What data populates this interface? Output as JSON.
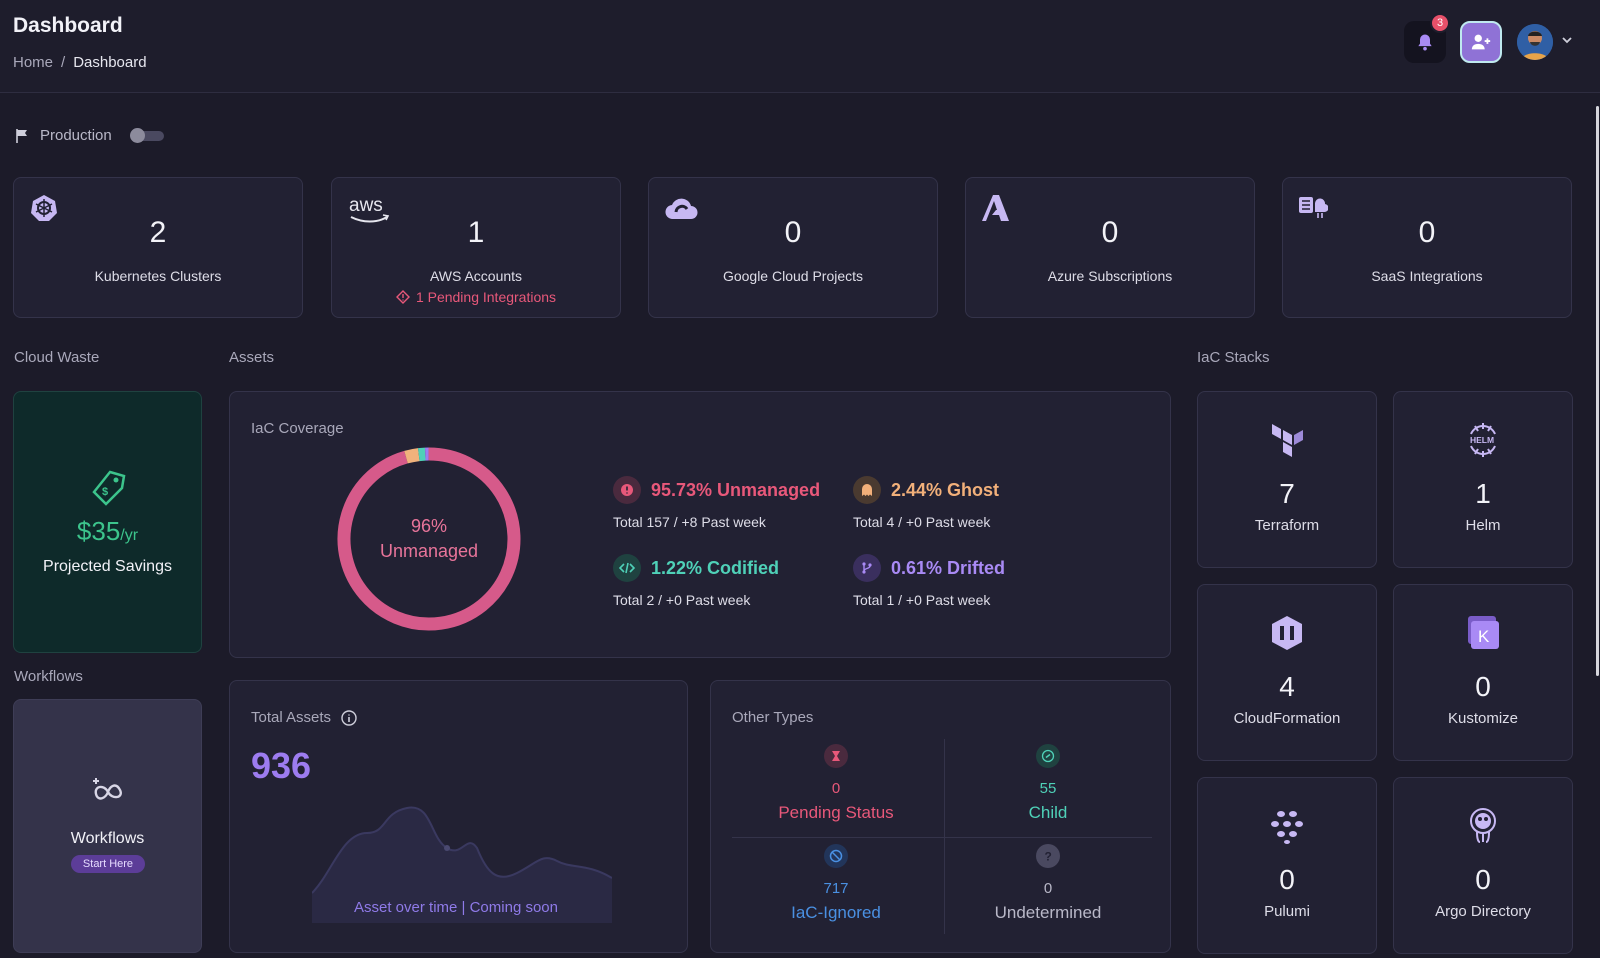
{
  "header": {
    "title": "Dashboard",
    "breadcrumb": [
      "Home",
      "Dashboard"
    ],
    "notification_count": "3"
  },
  "env": {
    "label": "Production"
  },
  "clouds": [
    {
      "icon": "kubernetes-icon",
      "value": "2",
      "label": "Kubernetes Clusters"
    },
    {
      "icon": "aws-icon",
      "value": "1",
      "label": "AWS Accounts",
      "warning": "1 Pending Integrations"
    },
    {
      "icon": "google-cloud-icon",
      "value": "0",
      "label": "Google Cloud Projects"
    },
    {
      "icon": "azure-icon",
      "value": "0",
      "label": "Azure Subscriptions"
    },
    {
      "icon": "saas-icon",
      "value": "0",
      "label": "SaaS Integrations"
    }
  ],
  "sections": {
    "cloud_waste": "Cloud Waste",
    "assets": "Assets",
    "iac_stacks": "IaC Stacks",
    "workflows": "Workflows"
  },
  "cloud_waste": {
    "amount": "$35",
    "unit": "/yr",
    "label": "Projected Savings"
  },
  "workflows": {
    "label": "Workflows",
    "button": "Start Here"
  },
  "iac_coverage": {
    "title": "IaC Coverage",
    "center_value": "96%",
    "center_label": "Unmanaged",
    "stats": [
      {
        "label": "95.73% Unmanaged",
        "sub": "Total 157 / +8 Past week",
        "color": "#e8587a"
      },
      {
        "label": "2.44% Ghost",
        "sub": "Total 4 / +0 Past week",
        "color": "#f2b07a"
      },
      {
        "label": "1.22% Codified",
        "sub": "Total 2 / +0 Past week",
        "color": "#4fd1b8"
      },
      {
        "label": "0.61% Drifted",
        "sub": "Total 1 / +0 Past week",
        "color": "#a98af5"
      }
    ]
  },
  "chart_data": {
    "type": "pie",
    "categories": [
      "Unmanaged",
      "Ghost",
      "Codified",
      "Drifted"
    ],
    "values": [
      95.73,
      2.44,
      1.22,
      0.61
    ],
    "colors": [
      "#d65a8a",
      "#f0b27c",
      "#4fd1b8",
      "#9d7cf0"
    ]
  },
  "total_assets": {
    "title": "Total Assets",
    "value": "936",
    "note": "Asset over time | Coming soon"
  },
  "other_types": {
    "title": "Other Types",
    "items": [
      {
        "value": "0",
        "label": "Pending Status",
        "color": "#e8587a"
      },
      {
        "value": "55",
        "label": "Child",
        "color": "#4fd1b8"
      },
      {
        "value": "717",
        "label": "IaC-Ignored",
        "color": "#4a90e2"
      },
      {
        "value": "0",
        "label": "Undetermined",
        "color": "#b9b8c8"
      }
    ]
  },
  "iac_stacks": [
    {
      "icon": "terraform-icon",
      "value": "7",
      "label": "Terraform"
    },
    {
      "icon": "helm-icon",
      "value": "1",
      "label": "Helm"
    },
    {
      "icon": "cloudformation-icon",
      "value": "4",
      "label": "CloudFormation"
    },
    {
      "icon": "kustomize-icon",
      "value": "0",
      "label": "Kustomize"
    },
    {
      "icon": "pulumi-icon",
      "value": "0",
      "label": "Pulumi"
    },
    {
      "icon": "argo-icon",
      "value": "0",
      "label": "Argo Directory"
    }
  ]
}
